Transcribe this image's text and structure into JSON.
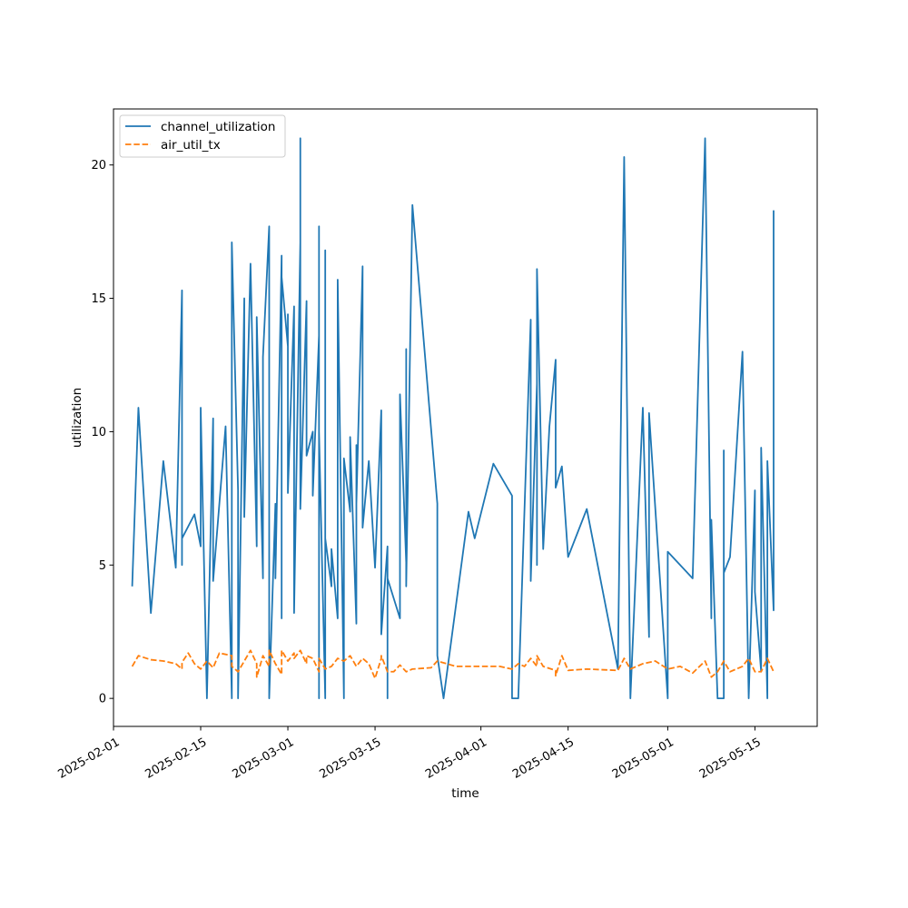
{
  "chart_data": {
    "type": "line",
    "title": "",
    "xlabel": "time",
    "ylabel": "utilization",
    "x_axis_type": "date",
    "xlim": [
      "2025-02-01",
      "2025-05-25"
    ],
    "ylim": [
      -1.05,
      22.1
    ],
    "x_ticks": [
      "2025-02-01",
      "2025-02-15",
      "2025-03-01",
      "2025-03-15",
      "2025-04-01",
      "2025-04-15",
      "2025-05-01",
      "2025-05-15"
    ],
    "y_ticks": [
      0,
      5,
      10,
      15,
      20
    ],
    "grid": false,
    "legend": {
      "position": "top-left",
      "entries": [
        "channel_utilization",
        "air_util_tx"
      ]
    },
    "series": [
      {
        "name": "channel_utilization",
        "color": "#1f77b4",
        "line_style": "solid",
        "points": [
          [
            "2025-02-04",
            4.2
          ],
          [
            "2025-02-05",
            10.9
          ],
          [
            "2025-02-07",
            3.2
          ],
          [
            "2025-02-09",
            8.9
          ],
          [
            "2025-02-11",
            4.9
          ],
          [
            "2025-02-12",
            15.3
          ],
          [
            "2025-02-12",
            5.0
          ],
          [
            "2025-02-12",
            6.0
          ],
          [
            "2025-02-14",
            6.9
          ],
          [
            "2025-02-15",
            5.7
          ],
          [
            "2025-02-15",
            10.9
          ],
          [
            "2025-02-16",
            0.0
          ],
          [
            "2025-02-17",
            10.5
          ],
          [
            "2025-02-17",
            5.1
          ],
          [
            "2025-02-17",
            6.8
          ],
          [
            "2025-02-17",
            4.4
          ],
          [
            "2025-02-19",
            10.2
          ],
          [
            "2025-02-20",
            0.0
          ],
          [
            "2025-02-20",
            17.1
          ],
          [
            "2025-02-21",
            7.8
          ],
          [
            "2025-02-21",
            0.0
          ],
          [
            "2025-02-22",
            15.0
          ],
          [
            "2025-02-22",
            6.8
          ],
          [
            "2025-02-23",
            16.3
          ],
          [
            "2025-02-24",
            5.7
          ],
          [
            "2025-02-24",
            14.3
          ],
          [
            "2025-02-25",
            4.5
          ],
          [
            "2025-02-25",
            12.8
          ],
          [
            "2025-02-26",
            17.7
          ],
          [
            "2025-02-26",
            0.0
          ],
          [
            "2025-02-27",
            7.3
          ],
          [
            "2025-02-27",
            4.5
          ],
          [
            "2025-02-28",
            16.6
          ],
          [
            "2025-02-28",
            3.0
          ],
          [
            "2025-02-28",
            15.8
          ],
          [
            "2025-03-01",
            13.2
          ],
          [
            "2025-03-01",
            14.4
          ],
          [
            "2025-03-01",
            7.7
          ],
          [
            "2025-03-02",
            14.7
          ],
          [
            "2025-03-02",
            3.2
          ],
          [
            "2025-03-03",
            17.1
          ],
          [
            "2025-03-03",
            10.8
          ],
          [
            "2025-03-03",
            21.0
          ],
          [
            "2025-03-03",
            7.1
          ],
          [
            "2025-03-04",
            14.9
          ],
          [
            "2025-03-04",
            9.1
          ],
          [
            "2025-03-05",
            10.0
          ],
          [
            "2025-03-05",
            7.6
          ],
          [
            "2025-03-06",
            13.6
          ],
          [
            "2025-03-06",
            0.0
          ],
          [
            "2025-03-06",
            17.7
          ],
          [
            "2025-03-06",
            10.0
          ],
          [
            "2025-03-07",
            0.0
          ],
          [
            "2025-03-07",
            16.8
          ],
          [
            "2025-03-07",
            6.0
          ],
          [
            "2025-03-08",
            4.2
          ],
          [
            "2025-03-08",
            5.6
          ],
          [
            "2025-03-09",
            3.0
          ],
          [
            "2025-03-09",
            15.7
          ],
          [
            "2025-03-10",
            0.0
          ],
          [
            "2025-03-10",
            9.0
          ],
          [
            "2025-03-11",
            7.0
          ],
          [
            "2025-03-11",
            9.8
          ],
          [
            "2025-03-12",
            2.8
          ],
          [
            "2025-03-12",
            9.5
          ],
          [
            "2025-03-12",
            7.3
          ],
          [
            "2025-03-13",
            16.2
          ],
          [
            "2025-03-13",
            7.2
          ],
          [
            "2025-03-13",
            6.4
          ],
          [
            "2025-03-14",
            8.9
          ],
          [
            "2025-03-15",
            4.9
          ],
          [
            "2025-03-16",
            10.8
          ],
          [
            "2025-03-16",
            2.4
          ],
          [
            "2025-03-17",
            5.7
          ],
          [
            "2025-03-17",
            0.0
          ],
          [
            "2025-03-17",
            4.5
          ],
          [
            "2025-03-19",
            3.0
          ],
          [
            "2025-03-19",
            11.4
          ],
          [
            "2025-03-20",
            5.1
          ],
          [
            "2025-03-20",
            13.1
          ],
          [
            "2025-03-20",
            4.2
          ],
          [
            "2025-03-21",
            18.5
          ],
          [
            "2025-03-25",
            7.3
          ],
          [
            "2025-03-25",
            1.6
          ],
          [
            "2025-03-26",
            0.0
          ],
          [
            "2025-03-30",
            7.0
          ],
          [
            "2025-03-31",
            6.0
          ],
          [
            "2025-04-03",
            8.8
          ],
          [
            "2025-04-06",
            7.6
          ],
          [
            "2025-04-06",
            0.0
          ],
          [
            "2025-04-07",
            0.0
          ],
          [
            "2025-04-09",
            14.2
          ],
          [
            "2025-04-09",
            4.4
          ],
          [
            "2025-04-10",
            11.8
          ],
          [
            "2025-04-10",
            5.0
          ],
          [
            "2025-04-10",
            16.1
          ],
          [
            "2025-04-11",
            5.6
          ],
          [
            "2025-04-12",
            10.2
          ],
          [
            "2025-04-13",
            12.7
          ],
          [
            "2025-04-13",
            7.9
          ],
          [
            "2025-04-14",
            8.7
          ],
          [
            "2025-04-15",
            5.3
          ],
          [
            "2025-04-18",
            7.1
          ],
          [
            "2025-04-23",
            1.1
          ],
          [
            "2025-04-24",
            20.3
          ],
          [
            "2025-04-25",
            0.0
          ],
          [
            "2025-04-27",
            10.9
          ],
          [
            "2025-04-28",
            2.3
          ],
          [
            "2025-04-28",
            10.7
          ],
          [
            "2025-05-01",
            0.0
          ],
          [
            "2025-05-01",
            5.5
          ],
          [
            "2025-05-05",
            4.5
          ],
          [
            "2025-05-07",
            21.0
          ],
          [
            "2025-05-08",
            3.0
          ],
          [
            "2025-05-08",
            6.7
          ],
          [
            "2025-05-09",
            0.0
          ],
          [
            "2025-05-10",
            0.0
          ],
          [
            "2025-05-10",
            7.4
          ],
          [
            "2025-05-10",
            0.0
          ],
          [
            "2025-05-10",
            9.3
          ],
          [
            "2025-05-10",
            4.7
          ],
          [
            "2025-05-11",
            5.3
          ],
          [
            "2025-05-13",
            13.0
          ],
          [
            "2025-05-14",
            0.0
          ],
          [
            "2025-05-15",
            7.8
          ],
          [
            "2025-05-15",
            4.0
          ],
          [
            "2025-05-16",
            1.0
          ],
          [
            "2025-05-16",
            9.4
          ],
          [
            "2025-05-17",
            0.0
          ],
          [
            "2025-05-17",
            8.9
          ],
          [
            "2025-05-17",
            3.3
          ],
          [
            "2025-05-17",
            8.9
          ],
          [
            "2025-05-18",
            3.3
          ],
          [
            "2025-05-18",
            18.3
          ]
        ]
      },
      {
        "name": "air_util_tx",
        "color": "#ff7f0e",
        "line_style": "dashed",
        "points": [
          [
            "2025-02-04",
            1.2
          ],
          [
            "2025-02-05",
            1.6
          ],
          [
            "2025-02-07",
            1.45
          ],
          [
            "2025-02-09",
            1.4
          ],
          [
            "2025-02-11",
            1.3
          ],
          [
            "2025-02-12",
            1.1
          ],
          [
            "2025-02-12",
            1.35
          ],
          [
            "2025-02-13",
            1.7
          ],
          [
            "2025-02-14",
            1.3
          ],
          [
            "2025-02-15",
            1.1
          ],
          [
            "2025-02-16",
            1.4
          ],
          [
            "2025-02-17",
            1.15
          ],
          [
            "2025-02-18",
            1.7
          ],
          [
            "2025-02-20",
            1.6
          ],
          [
            "2025-02-20",
            1.2
          ],
          [
            "2025-02-21",
            1.0
          ],
          [
            "2025-02-22",
            1.4
          ],
          [
            "2025-02-23",
            1.8
          ],
          [
            "2025-02-24",
            1.3
          ],
          [
            "2025-02-24",
            0.8
          ],
          [
            "2025-02-25",
            1.6
          ],
          [
            "2025-02-26",
            1.2
          ],
          [
            "2025-02-26",
            1.8
          ],
          [
            "2025-02-27",
            1.3
          ],
          [
            "2025-02-28",
            0.9
          ],
          [
            "2025-02-28",
            1.8
          ],
          [
            "2025-03-01",
            1.4
          ],
          [
            "2025-03-02",
            1.7
          ],
          [
            "2025-03-02",
            1.5
          ],
          [
            "2025-03-03",
            1.8
          ],
          [
            "2025-03-04",
            1.3
          ],
          [
            "2025-03-04",
            1.6
          ],
          [
            "2025-03-05",
            1.5
          ],
          [
            "2025-03-06",
            1.0
          ],
          [
            "2025-03-06",
            1.5
          ],
          [
            "2025-03-07",
            1.1
          ],
          [
            "2025-03-08",
            1.2
          ],
          [
            "2025-03-09",
            1.5
          ],
          [
            "2025-03-10",
            1.4
          ],
          [
            "2025-03-11",
            1.6
          ],
          [
            "2025-03-12",
            1.2
          ],
          [
            "2025-03-13",
            1.5
          ],
          [
            "2025-03-14",
            1.3
          ],
          [
            "2025-03-15",
            0.75
          ],
          [
            "2025-03-16",
            1.5
          ],
          [
            "2025-03-16",
            1.6
          ],
          [
            "2025-03-17",
            1.0
          ],
          [
            "2025-03-18",
            1.0
          ],
          [
            "2025-03-19",
            1.25
          ],
          [
            "2025-03-20",
            1.0
          ],
          [
            "2025-03-21",
            1.1
          ],
          [
            "2025-03-24",
            1.15
          ],
          [
            "2025-03-25",
            1.4
          ],
          [
            "2025-03-28",
            1.2
          ],
          [
            "2025-03-31",
            1.2
          ],
          [
            "2025-04-04",
            1.2
          ],
          [
            "2025-04-06",
            1.1
          ],
          [
            "2025-04-07",
            1.3
          ],
          [
            "2025-04-08",
            1.2
          ],
          [
            "2025-04-09",
            1.5
          ],
          [
            "2025-04-10",
            1.2
          ],
          [
            "2025-04-10",
            1.6
          ],
          [
            "2025-04-11",
            1.2
          ],
          [
            "2025-04-13",
            1.05
          ],
          [
            "2025-04-13",
            0.85
          ],
          [
            "2025-04-14",
            1.6
          ],
          [
            "2025-04-15",
            1.05
          ],
          [
            "2025-04-18",
            1.1
          ],
          [
            "2025-04-23",
            1.05
          ],
          [
            "2025-04-24",
            1.5
          ],
          [
            "2025-04-25",
            1.1
          ],
          [
            "2025-04-27",
            1.3
          ],
          [
            "2025-04-29",
            1.4
          ],
          [
            "2025-05-01",
            1.1
          ],
          [
            "2025-05-03",
            1.2
          ],
          [
            "2025-05-05",
            0.95
          ],
          [
            "2025-05-07",
            1.4
          ],
          [
            "2025-05-08",
            0.8
          ],
          [
            "2025-05-09",
            1.0
          ],
          [
            "2025-05-10",
            1.4
          ],
          [
            "2025-05-11",
            1.0
          ],
          [
            "2025-05-12",
            1.1
          ],
          [
            "2025-05-13",
            1.2
          ],
          [
            "2025-05-14",
            1.5
          ],
          [
            "2025-05-15",
            1.0
          ],
          [
            "2025-05-16",
            1.0
          ],
          [
            "2025-05-17",
            1.5
          ],
          [
            "2025-05-18",
            1.0
          ]
        ]
      }
    ]
  }
}
